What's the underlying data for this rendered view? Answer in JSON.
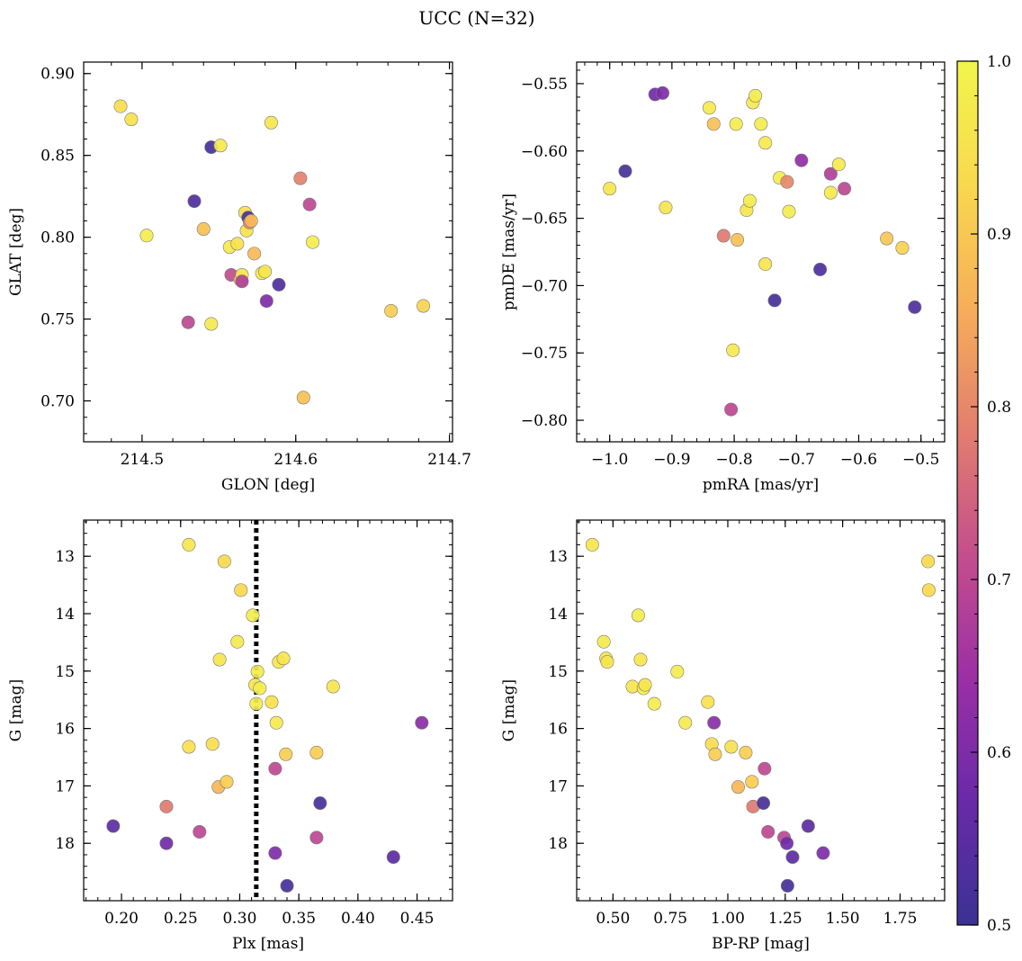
{
  "figure": {
    "title": "UCC (N=32)"
  },
  "colorbar": {
    "min": 0.5,
    "max": 1.0,
    "ticks": [
      0.5,
      0.6,
      0.7,
      0.8,
      0.9,
      1.0
    ],
    "tick_labels": [
      "0.5",
      "0.6",
      "0.7",
      "0.8",
      "0.9",
      "1.0"
    ],
    "colormap": "plasma"
  },
  "colors": {
    "marker_edge": "#7a7a7a",
    "vline": "#000000",
    "plasma_stops": [
      "#3a3294",
      "#6a2aa8",
      "#9b2fa6",
      "#c44e8d",
      "#e27e6e",
      "#f6ae5a",
      "#f9d84e",
      "#f2f54c"
    ]
  },
  "chart_data": [
    {
      "type": "scatter",
      "xlabel": "GLON [deg]",
      "ylabel": "GLAT [deg]",
      "xlim": [
        214.462,
        214.702
      ],
      "ylim": [
        0.675,
        0.907
      ],
      "xticks": [
        214.5,
        214.6,
        214.7
      ],
      "xtick_labels": [
        "214.5",
        "214.6",
        "214.7"
      ],
      "yticks": [
        0.7,
        0.75,
        0.8,
        0.85,
        0.9
      ],
      "ytick_labels": [
        "0.70",
        "0.75",
        "0.80",
        "0.85",
        "0.90"
      ],
      "points": [
        {
          "x": 214.486,
          "y": 0.88,
          "c": 0.94
        },
        {
          "x": 214.493,
          "y": 0.872,
          "c": 0.95
        },
        {
          "x": 214.503,
          "y": 0.801,
          "c": 0.98
        },
        {
          "x": 214.53,
          "y": 0.748,
          "c": 0.7
        },
        {
          "x": 214.534,
          "y": 0.822,
          "c": 0.53
        },
        {
          "x": 214.54,
          "y": 0.805,
          "c": 0.89
        },
        {
          "x": 214.545,
          "y": 0.855,
          "c": 0.52
        },
        {
          "x": 214.545,
          "y": 0.747,
          "c": 0.97
        },
        {
          "x": 214.551,
          "y": 0.856,
          "c": 0.97
        },
        {
          "x": 214.557,
          "y": 0.794,
          "c": 0.97
        },
        {
          "x": 214.558,
          "y": 0.777,
          "c": 0.71
        },
        {
          "x": 214.562,
          "y": 0.796,
          "c": 0.95
        },
        {
          "x": 214.564,
          "y": 0.774,
          "c": 0.97
        },
        {
          "x": 214.565,
          "y": 0.777,
          "c": 0.96
        },
        {
          "x": 214.565,
          "y": 0.773,
          "c": 0.68
        },
        {
          "x": 214.567,
          "y": 0.815,
          "c": 0.94
        },
        {
          "x": 214.568,
          "y": 0.804,
          "c": 0.95
        },
        {
          "x": 214.569,
          "y": 0.812,
          "c": 0.52
        },
        {
          "x": 214.57,
          "y": 0.809,
          "c": 0.8
        },
        {
          "x": 214.571,
          "y": 0.81,
          "c": 0.88
        },
        {
          "x": 214.573,
          "y": 0.79,
          "c": 0.88
        },
        {
          "x": 214.578,
          "y": 0.778,
          "c": 0.97
        },
        {
          "x": 214.58,
          "y": 0.779,
          "c": 0.96
        },
        {
          "x": 214.581,
          "y": 0.761,
          "c": 0.6
        },
        {
          "x": 214.584,
          "y": 0.87,
          "c": 0.96
        },
        {
          "x": 214.589,
          "y": 0.771,
          "c": 0.53
        },
        {
          "x": 214.603,
          "y": 0.836,
          "c": 0.79
        },
        {
          "x": 214.605,
          "y": 0.702,
          "c": 0.89
        },
        {
          "x": 214.609,
          "y": 0.82,
          "c": 0.7
        },
        {
          "x": 214.611,
          "y": 0.797,
          "c": 0.98
        },
        {
          "x": 214.662,
          "y": 0.755,
          "c": 0.91
        },
        {
          "x": 214.683,
          "y": 0.758,
          "c": 0.92
        }
      ]
    },
    {
      "type": "scatter",
      "xlabel": "pmRA [mas/yr]",
      "ylabel": "pmDE [mas/yr]",
      "xlim": [
        -1.053,
        -0.462
      ],
      "ylim": [
        -0.816,
        -0.534
      ],
      "xticks": [
        -1.0,
        -0.9,
        -0.8,
        -0.7,
        -0.6,
        -0.5
      ],
      "xtick_labels": [
        "−1.0",
        "−0.9",
        "−0.8",
        "−0.7",
        "−0.6",
        "−0.5"
      ],
      "yticks": [
        -0.8,
        -0.75,
        -0.7,
        -0.65,
        -0.6,
        -0.55
      ],
      "ytick_labels": [
        "−0.80",
        "−0.75",
        "−0.70",
        "−0.65",
        "−0.60",
        "−0.55"
      ],
      "points": [
        {
          "x": -1.0,
          "y": -0.628,
          "c": 0.96
        },
        {
          "x": -0.975,
          "y": -0.615,
          "c": 0.52
        },
        {
          "x": -0.927,
          "y": -0.558,
          "c": 0.58
        },
        {
          "x": -0.915,
          "y": -0.557,
          "c": 0.6
        },
        {
          "x": -0.91,
          "y": -0.642,
          "c": 0.96
        },
        {
          "x": -0.84,
          "y": -0.568,
          "c": 0.97
        },
        {
          "x": -0.833,
          "y": -0.58,
          "c": 0.89
        },
        {
          "x": -0.817,
          "y": -0.663,
          "c": 0.78
        },
        {
          "x": -0.805,
          "y": -0.792,
          "c": 0.7
        },
        {
          "x": -0.802,
          "y": -0.748,
          "c": 0.97
        },
        {
          "x": -0.797,
          "y": -0.58,
          "c": 0.98
        },
        {
          "x": -0.795,
          "y": -0.666,
          "c": 0.89
        },
        {
          "x": -0.78,
          "y": -0.644,
          "c": 0.96
        },
        {
          "x": -0.775,
          "y": -0.637,
          "c": 0.98
        },
        {
          "x": -0.77,
          "y": -0.564,
          "c": 0.97
        },
        {
          "x": -0.766,
          "y": -0.559,
          "c": 0.98
        },
        {
          "x": -0.757,
          "y": -0.58,
          "c": 0.98
        },
        {
          "x": -0.75,
          "y": -0.594,
          "c": 0.97
        },
        {
          "x": -0.75,
          "y": -0.684,
          "c": 0.96
        },
        {
          "x": -0.735,
          "y": -0.711,
          "c": 0.52
        },
        {
          "x": -0.727,
          "y": -0.62,
          "c": 0.98
        },
        {
          "x": -0.715,
          "y": -0.623,
          "c": 0.8
        },
        {
          "x": -0.712,
          "y": -0.645,
          "c": 0.98
        },
        {
          "x": -0.692,
          "y": -0.607,
          "c": 0.63
        },
        {
          "x": -0.662,
          "y": -0.688,
          "c": 0.53
        },
        {
          "x": -0.645,
          "y": -0.617,
          "c": 0.68
        },
        {
          "x": -0.645,
          "y": -0.631,
          "c": 0.97
        },
        {
          "x": -0.632,
          "y": -0.61,
          "c": 0.97
        },
        {
          "x": -0.623,
          "y": -0.628,
          "c": 0.7
        },
        {
          "x": -0.555,
          "y": -0.665,
          "c": 0.9
        },
        {
          "x": -0.53,
          "y": -0.672,
          "c": 0.92
        },
        {
          "x": -0.51,
          "y": -0.716,
          "c": 0.53
        }
      ]
    },
    {
      "type": "scatter",
      "xlabel": "Plx [mas]",
      "ylabel": "G [mag]",
      "xlim": [
        0.168,
        0.48
      ],
      "ylim": [
        19.0,
        12.37
      ],
      "y_inverted": true,
      "vline_x": 0.314,
      "xticks": [
        0.2,
        0.25,
        0.3,
        0.35,
        0.4,
        0.45
      ],
      "xtick_labels": [
        "0.20",
        "0.25",
        "0.30",
        "0.35",
        "0.40",
        "0.45"
      ],
      "yticks": [
        13,
        14,
        15,
        16,
        17,
        18
      ],
      "ytick_labels": [
        "13",
        "14",
        "15",
        "16",
        "17",
        "18"
      ],
      "points": [
        {
          "x": 0.193,
          "y": 17.7,
          "c": 0.55
        },
        {
          "x": 0.238,
          "y": 17.36,
          "c": 0.78
        },
        {
          "x": 0.238,
          "y": 18.0,
          "c": 0.58
        },
        {
          "x": 0.257,
          "y": 12.8,
          "c": 0.96
        },
        {
          "x": 0.257,
          "y": 16.32,
          "c": 0.95
        },
        {
          "x": 0.266,
          "y": 17.8,
          "c": 0.7
        },
        {
          "x": 0.277,
          "y": 16.27,
          "c": 0.94
        },
        {
          "x": 0.282,
          "y": 17.02,
          "c": 0.87
        },
        {
          "x": 0.283,
          "y": 14.8,
          "c": 0.96
        },
        {
          "x": 0.287,
          "y": 13.09,
          "c": 0.93
        },
        {
          "x": 0.289,
          "y": 16.93,
          "c": 0.91
        },
        {
          "x": 0.298,
          "y": 14.49,
          "c": 0.97
        },
        {
          "x": 0.301,
          "y": 13.59,
          "c": 0.93
        },
        {
          "x": 0.311,
          "y": 14.03,
          "c": 0.98
        },
        {
          "x": 0.313,
          "y": 15.24,
          "c": 0.96
        },
        {
          "x": 0.314,
          "y": 15.57,
          "c": 0.98
        },
        {
          "x": 0.315,
          "y": 15.01,
          "c": 0.98
        },
        {
          "x": 0.317,
          "y": 15.3,
          "c": 0.98
        },
        {
          "x": 0.327,
          "y": 15.54,
          "c": 0.95
        },
        {
          "x": 0.33,
          "y": 16.7,
          "c": 0.7
        },
        {
          "x": 0.33,
          "y": 18.17,
          "c": 0.6
        },
        {
          "x": 0.331,
          "y": 15.9,
          "c": 0.97
        },
        {
          "x": 0.333,
          "y": 14.84,
          "c": 0.96
        },
        {
          "x": 0.337,
          "y": 14.78,
          "c": 0.96
        },
        {
          "x": 0.339,
          "y": 16.45,
          "c": 0.91
        },
        {
          "x": 0.34,
          "y": 18.74,
          "c": 0.52
        },
        {
          "x": 0.365,
          "y": 16.42,
          "c": 0.91
        },
        {
          "x": 0.365,
          "y": 17.9,
          "c": 0.7
        },
        {
          "x": 0.368,
          "y": 17.3,
          "c": 0.52
        },
        {
          "x": 0.379,
          "y": 15.27,
          "c": 0.96
        },
        {
          "x": 0.43,
          "y": 18.24,
          "c": 0.55
        },
        {
          "x": 0.454,
          "y": 15.9,
          "c": 0.62
        }
      ]
    },
    {
      "type": "scatter",
      "xlabel": "BP-RP [mag]",
      "ylabel": "G [mag]",
      "xlim": [
        0.342,
        1.944
      ],
      "ylim": [
        19.0,
        12.37
      ],
      "y_inverted": true,
      "xticks": [
        0.5,
        0.75,
        1.0,
        1.25,
        1.5,
        1.75
      ],
      "xtick_labels": [
        "0.50",
        "0.75",
        "1.00",
        "1.25",
        "1.50",
        "1.75"
      ],
      "yticks": [
        13,
        14,
        15,
        16,
        17,
        18
      ],
      "ytick_labels": [
        "13",
        "14",
        "15",
        "16",
        "17",
        "18"
      ],
      "points": [
        {
          "x": 0.41,
          "y": 12.8,
          "c": 0.96
        },
        {
          "x": 0.46,
          "y": 14.49,
          "c": 0.97
        },
        {
          "x": 0.47,
          "y": 14.78,
          "c": 0.96
        },
        {
          "x": 0.475,
          "y": 14.84,
          "c": 0.96
        },
        {
          "x": 0.585,
          "y": 15.27,
          "c": 0.96
        },
        {
          "x": 0.61,
          "y": 14.03,
          "c": 0.98
        },
        {
          "x": 0.62,
          "y": 14.8,
          "c": 0.96
        },
        {
          "x": 0.633,
          "y": 15.3,
          "c": 0.98
        },
        {
          "x": 0.64,
          "y": 15.24,
          "c": 0.96
        },
        {
          "x": 0.68,
          "y": 15.57,
          "c": 0.98
        },
        {
          "x": 0.78,
          "y": 15.01,
          "c": 0.98
        },
        {
          "x": 0.815,
          "y": 15.9,
          "c": 0.97
        },
        {
          "x": 0.913,
          "y": 15.54,
          "c": 0.95
        },
        {
          "x": 0.93,
          "y": 16.27,
          "c": 0.94
        },
        {
          "x": 0.94,
          "y": 15.9,
          "c": 0.62
        },
        {
          "x": 0.945,
          "y": 16.45,
          "c": 0.91
        },
        {
          "x": 1.015,
          "y": 16.32,
          "c": 0.95
        },
        {
          "x": 1.045,
          "y": 17.02,
          "c": 0.87
        },
        {
          "x": 1.078,
          "y": 16.42,
          "c": 0.91
        },
        {
          "x": 1.105,
          "y": 16.93,
          "c": 0.91
        },
        {
          "x": 1.11,
          "y": 17.36,
          "c": 0.78
        },
        {
          "x": 1.155,
          "y": 17.3,
          "c": 0.52
        },
        {
          "x": 1.16,
          "y": 16.7,
          "c": 0.7
        },
        {
          "x": 1.175,
          "y": 17.8,
          "c": 0.7
        },
        {
          "x": 1.245,
          "y": 17.9,
          "c": 0.7
        },
        {
          "x": 1.257,
          "y": 18.0,
          "c": 0.58
        },
        {
          "x": 1.26,
          "y": 18.74,
          "c": 0.52
        },
        {
          "x": 1.282,
          "y": 18.24,
          "c": 0.55
        },
        {
          "x": 1.35,
          "y": 17.7,
          "c": 0.55
        },
        {
          "x": 1.415,
          "y": 18.17,
          "c": 0.6
        },
        {
          "x": 1.872,
          "y": 13.09,
          "c": 0.93
        },
        {
          "x": 1.875,
          "y": 13.59,
          "c": 0.93
        }
      ]
    }
  ]
}
